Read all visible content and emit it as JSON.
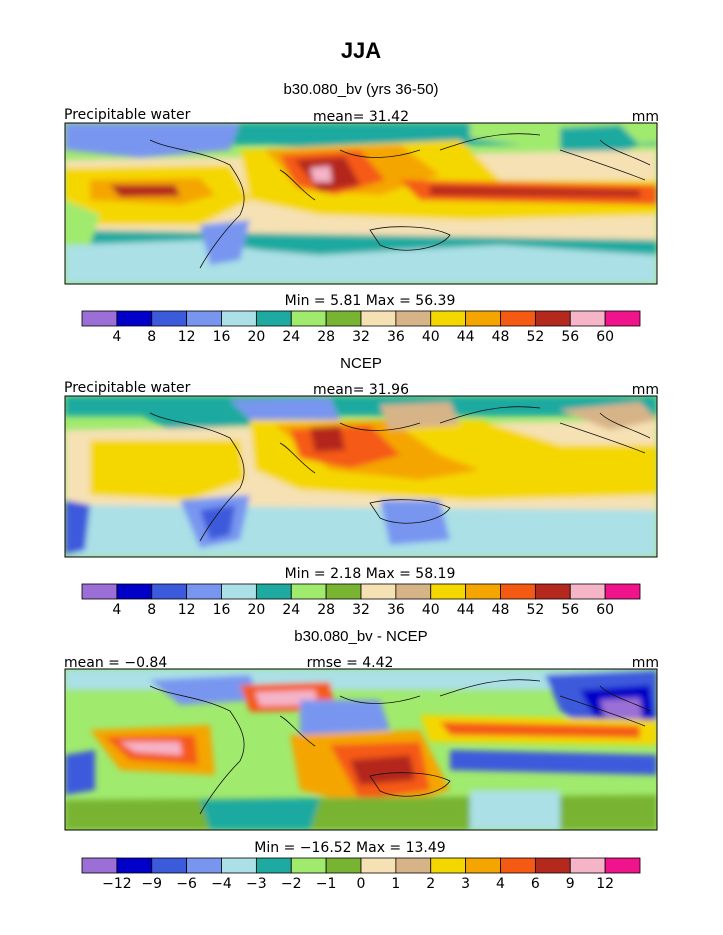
{
  "title": "JJA",
  "colors": {
    "levels": [
      "#9b6fd6",
      "#0000c8",
      "#3c5adc",
      "#7896f0",
      "#aae0e6",
      "#1eaaa0",
      "#a0ea6e",
      "#78b432",
      "#f5e1b4",
      "#d7b488",
      "#f5d700",
      "#f5a500",
      "#f55a14",
      "#b4281e",
      "#f5b4c8",
      "#f0148c"
    ],
    "diff_levels": [
      "#9b6fd6",
      "#0000c8",
      "#3c5adc",
      "#7896f0",
      "#aae0e6",
      "#1eaaa0",
      "#a0ea6e",
      "#78b432",
      "#f5e1b4",
      "#d7b488",
      "#f5d700",
      "#f5a500",
      "#f55a14",
      "#b4281e",
      "#f5b4c8",
      "#f0148c"
    ]
  },
  "panels": [
    {
      "title": "b30.080_bv (yrs 36-50)",
      "left_label": "Precipitable water",
      "center_label": "mean=  31.42",
      "right_label": "mm",
      "minmax": "Min =   5.81  Max =  56.39",
      "color_scale_ticks": [
        "4",
        "8",
        "12",
        "16",
        "20",
        "24",
        "28",
        "32",
        "36",
        "40",
        "44",
        "48",
        "52",
        "56",
        "60"
      ]
    },
    {
      "title": "NCEP",
      "left_label": "Precipitable water",
      "center_label": "mean=  31.96",
      "right_label": "mm",
      "minmax": "Min =   2.18  Max =  58.19",
      "color_scale_ticks": [
        "4",
        "8",
        "12",
        "16",
        "20",
        "24",
        "28",
        "32",
        "36",
        "40",
        "44",
        "48",
        "52",
        "56",
        "60"
      ]
    },
    {
      "title": "b30.080_bv - NCEP",
      "left_label": "mean =  −0.84",
      "center_label": "rmse =   4.42",
      "right_label": "mm",
      "minmax": "Min = −16.52  Max =  13.49",
      "color_scale_ticks": [
        "−12",
        "−9",
        "−6",
        "−4",
        "−3",
        "−2",
        "−1",
        "0",
        "1",
        "2",
        "3",
        "4",
        "6",
        "9",
        "12"
      ]
    }
  ],
  "chart_data": [
    {
      "type": "heatmap",
      "title": "b30.080_bv (yrs 36-50)",
      "variable": "Precipitable water",
      "units": "mm",
      "mean": 31.42,
      "min": 5.81,
      "max": 56.39,
      "contour_levels": [
        4,
        8,
        12,
        16,
        20,
        24,
        28,
        32,
        36,
        40,
        44,
        48,
        52,
        56,
        60
      ]
    },
    {
      "type": "heatmap",
      "title": "NCEP",
      "variable": "Precipitable water",
      "units": "mm",
      "mean": 31.96,
      "min": 2.18,
      "max": 58.19,
      "contour_levels": [
        4,
        8,
        12,
        16,
        20,
        24,
        28,
        32,
        36,
        40,
        44,
        48,
        52,
        56,
        60
      ]
    },
    {
      "type": "heatmap",
      "title": "b30.080_bv - NCEP",
      "units": "mm",
      "mean": -0.84,
      "rmse": 4.42,
      "min": -16.52,
      "max": 13.49,
      "contour_levels": [
        -12,
        -9,
        -6,
        -4,
        -3,
        -2,
        -1,
        0,
        1,
        2,
        3,
        4,
        6,
        9,
        12
      ]
    }
  ]
}
